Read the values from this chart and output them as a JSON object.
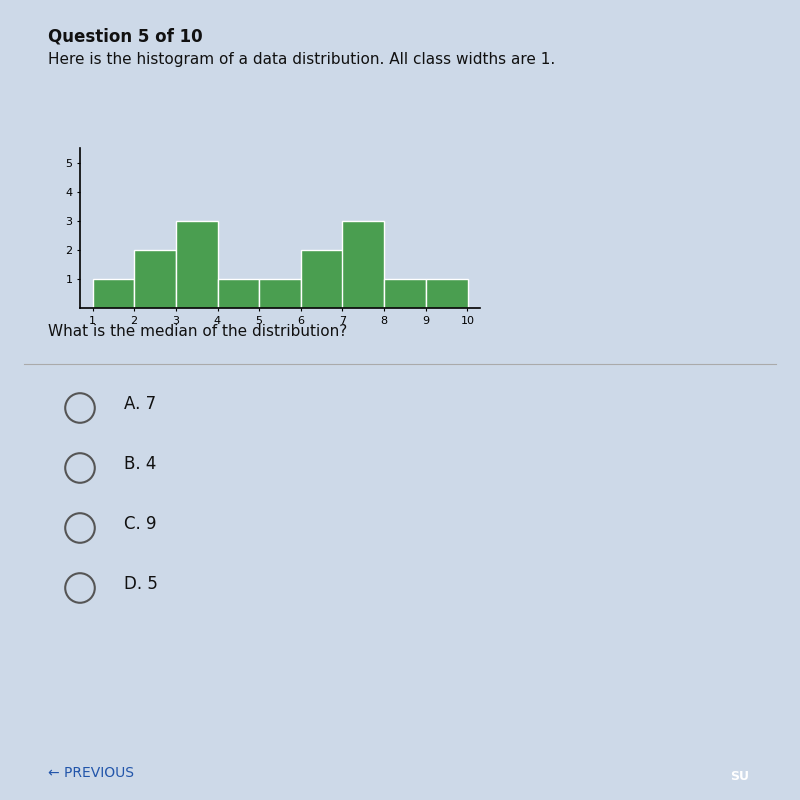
{
  "title": "Question 5 of 10",
  "subtitle": "Here is the histogram of a data distribution. All class widths are 1.",
  "question": "What is the median of the distribution?",
  "choices": [
    "A. 7",
    "B. 4",
    "C. 9",
    "D. 5"
  ],
  "bar_left_edges": [
    1,
    2,
    3,
    4,
    5,
    6,
    7,
    8,
    9
  ],
  "bar_heights": [
    1,
    2,
    3,
    1,
    1,
    2,
    3,
    1,
    1
  ],
  "bar_color": "#4a9e50",
  "bar_edge_color": "#ffffff",
  "xlim": [
    0.7,
    10.3
  ],
  "ylim": [
    0,
    5.5
  ],
  "xticks": [
    1,
    2,
    3,
    4,
    5,
    6,
    7,
    8,
    9,
    10
  ],
  "yticks": [
    1,
    2,
    3,
    4,
    5
  ],
  "bg_color": "#cdd9e8",
  "title_fontsize": 12,
  "subtitle_fontsize": 11,
  "question_fontsize": 11,
  "choices_fontsize": 12,
  "tick_fontsize": 8,
  "divider_color": "#aaaaaa",
  "circle_color": "#555555",
  "nav_color": "#2255aa",
  "submit_color": "#4a90d9"
}
